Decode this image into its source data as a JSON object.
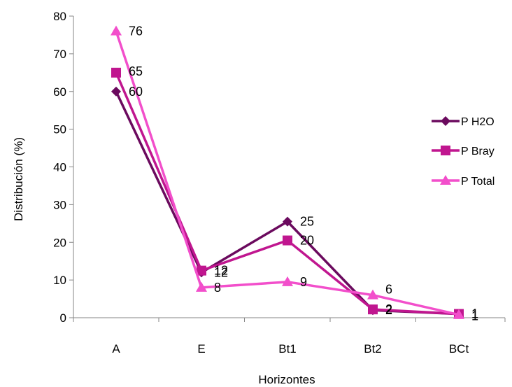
{
  "chart_data": {
    "type": "line",
    "title": "",
    "xlabel": "Horizontes",
    "ylabel": "Distribución (%)",
    "ylim": [
      0,
      80
    ],
    "yticks": [
      0,
      10,
      20,
      30,
      40,
      50,
      60,
      70,
      80
    ],
    "grid": false,
    "legend_position": "right",
    "categories": [
      "A",
      "E",
      "Bt1",
      "Bt2",
      "BCt"
    ],
    "series": [
      {
        "name": "P H2O",
        "marker": "diamond",
        "color": "#6B0A5E",
        "values": [
          60,
          12,
          25.5,
          2,
          1
        ],
        "labels": [
          "60",
          "12",
          "25",
          "2",
          "1"
        ]
      },
      {
        "name": "P Bray",
        "marker": "square",
        "color": "#C0168F",
        "values": [
          65,
          12.5,
          20.5,
          2.2,
          1
        ],
        "labels": [
          "65",
          "12",
          "20",
          "2",
          "1"
        ]
      },
      {
        "name": "P Total",
        "marker": "triangle",
        "color": "#F24FCB",
        "values": [
          76,
          8,
          9.5,
          6,
          0.8
        ],
        "labels": [
          "76",
          "8",
          "9",
          "6",
          "1"
        ]
      }
    ]
  }
}
